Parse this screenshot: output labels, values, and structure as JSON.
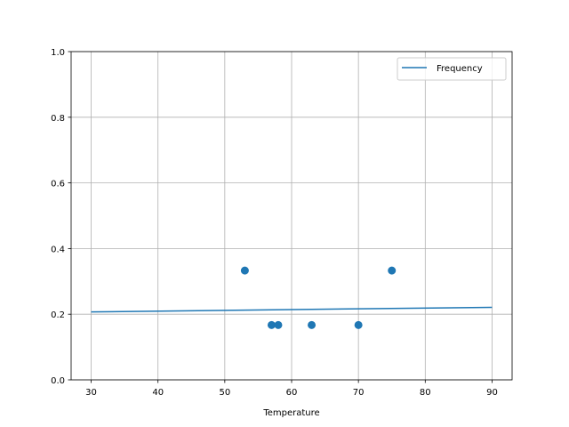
{
  "chart_data": {
    "type": "scatter+line",
    "title": "",
    "xlabel": "Temperature",
    "ylabel": "",
    "xlim": [
      27,
      93
    ],
    "ylim": [
      0,
      1
    ],
    "xticks": [
      30,
      40,
      50,
      60,
      70,
      80,
      90
    ],
    "yticks": [
      0.0,
      0.2,
      0.4,
      0.6,
      0.8,
      1.0
    ],
    "xtick_labels": [
      "30",
      "40",
      "50",
      "60",
      "70",
      "80",
      "90"
    ],
    "ytick_labels": [
      "0.0",
      "0.2",
      "0.4",
      "0.6",
      "0.8",
      "1.0"
    ],
    "grid": true,
    "legend": {
      "placement": "top-right",
      "entries": [
        "Frequency"
      ]
    },
    "series": [
      {
        "name": "Frequency",
        "kind": "line",
        "color": "#1f77b4",
        "x": [
          30,
          90
        ],
        "y": [
          0.207,
          0.221
        ]
      },
      {
        "kind": "scatter",
        "color": "#1f77b4",
        "x": [
          53,
          57,
          58,
          63,
          70,
          75
        ],
        "y": [
          0.333,
          0.167,
          0.167,
          0.167,
          0.167,
          0.333
        ]
      }
    ]
  }
}
